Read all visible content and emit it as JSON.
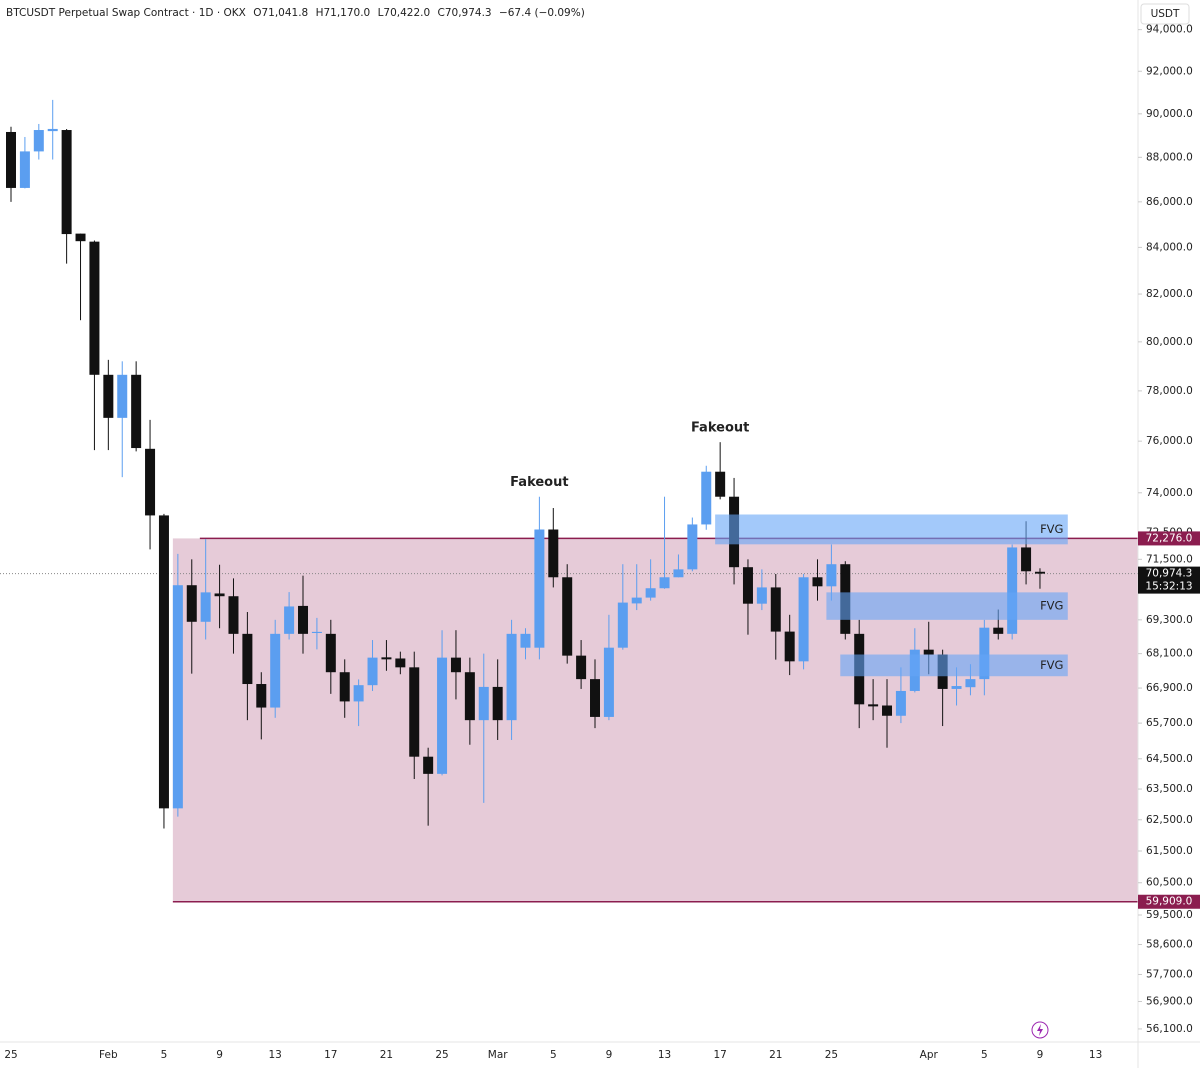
{
  "chart_data": {
    "type": "candlestick",
    "title": "BTCUSDT Perpetual Swap Contract · 1D · OKX",
    "ohlc_labels": [
      "O71,041.8",
      "H71,170.0",
      "L70,422.0",
      "C70,974.3",
      "−67.4 (−0.09%)"
    ],
    "currency": "USDT",
    "log_scale": true,
    "up_color": "#5b9ef0",
    "down_color": "#111111",
    "categories": [
      "25",
      null,
      null,
      null,
      null,
      null,
      null,
      "Feb",
      null,
      null,
      null,
      "5",
      null,
      null,
      null,
      "9",
      null,
      null,
      null,
      "13",
      null,
      null,
      null,
      "17",
      null,
      null,
      null,
      "21",
      null,
      null,
      null,
      "25",
      null,
      null,
      null,
      "Mar",
      null,
      null,
      null,
      "5",
      null,
      null,
      null,
      "9",
      null,
      null,
      null,
      "13",
      null,
      null,
      null,
      "17",
      null,
      null,
      null,
      "21",
      null,
      null,
      null,
      "25",
      null,
      null,
      null,
      null,
      null,
      null,
      "Apr",
      null,
      null,
      null,
      "5",
      null,
      null,
      null,
      "9",
      null,
      null,
      null,
      "13"
    ],
    "open": [
      89160,
      86620,
      88270,
      89200,
      89250,
      84600,
      84250,
      78650,
      76920,
      78650,
      75700,
      73140,
      62870,
      70550,
      69230,
      70250,
      70150,
      68800,
      67040,
      66230,
      68800,
      69800,
      68830,
      68800,
      67450,
      66440,
      67000,
      67970,
      67930,
      67620,
      64570,
      64000,
      67960,
      67450,
      65800,
      66940,
      65800,
      68310,
      68310,
      72610,
      70840,
      68030,
      67210,
      65910,
      68310,
      69890,
      70100,
      70440,
      70840,
      71130,
      72800,
      74810,
      73850,
      71210,
      69880,
      70470,
      68880,
      67830,
      70840,
      70510,
      71320,
      68800,
      66340,
      66300,
      65950,
      66800,
      68240,
      68070,
      66870,
      66930,
      67210,
      69020,
      68800,
      71940,
      71041.8,
      null,
      null,
      null,
      null
    ],
    "high": [
      89400,
      88930,
      89530,
      90650,
      89300,
      84600,
      84300,
      79260,
      79200,
      79200,
      76840,
      73200,
      71700,
      71500,
      72250,
      71300,
      70800,
      69580,
      67450,
      69300,
      70300,
      70900,
      69370,
      69300,
      67900,
      67200,
      68580,
      68580,
      68170,
      68170,
      64870,
      68930,
      68930,
      67960,
      68100,
      67900,
      69300,
      69000,
      73850,
      73420,
      71320,
      68580,
      67900,
      69480,
      71320,
      71320,
      71500,
      73850,
      71680,
      73060,
      75040,
      75960,
      74570,
      71500,
      71130,
      70960,
      69480,
      70960,
      71500,
      72050,
      71430,
      69300,
      67210,
      67210,
      67620,
      69000,
      69230,
      68240,
      67620,
      67730,
      69300,
      69670,
      72050,
      72920,
      71170,
      null,
      null,
      null,
      null
    ],
    "low": [
      86000,
      86600,
      87900,
      87900,
      83300,
      80900,
      75650,
      75650,
      74600,
      75600,
      71870,
      62220,
      62600,
      67400,
      68600,
      69000,
      68100,
      65800,
      65150,
      65880,
      68600,
      68100,
      68250,
      66700,
      65880,
      65600,
      66800,
      67500,
      67380,
      63830,
      62310,
      63950,
      66510,
      64970,
      63050,
      65130,
      65130,
      67900,
      67900,
      70470,
      67750,
      66870,
      65530,
      65800,
      68240,
      69650,
      69990,
      70420,
      70840,
      71060,
      72600,
      73750,
      70580,
      68770,
      69650,
      67890,
      67350,
      67550,
      69990,
      69990,
      68600,
      65530,
      65800,
      64870,
      65700,
      66750,
      67380,
      65600,
      66300,
      66650,
      66650,
      68600,
      68600,
      70580,
      70422,
      null,
      null,
      null,
      null
    ],
    "close": [
      86620,
      88270,
      89250,
      89300,
      84580,
      84270,
      78650,
      76920,
      78650,
      75730,
      73140,
      62870,
      70550,
      69230,
      70290,
      70150,
      68800,
      67040,
      66230,
      68800,
      69780,
      68800,
      68870,
      67450,
      66440,
      67000,
      67960,
      67900,
      67620,
      64570,
      64000,
      67960,
      67450,
      65800,
      66940,
      65800,
      68800,
      68800,
      72610,
      70840,
      68030,
      67210,
      65910,
      68310,
      69920,
      70100,
      70440,
      70840,
      71130,
      72800,
      74810,
      73850,
      71210,
      69880,
      70470,
      68880,
      67830,
      70840,
      70510,
      71320,
      68800,
      66340,
      66270,
      65950,
      66800,
      68240,
      68070,
      66870,
      66970,
      67210,
      69020,
      68800,
      71940,
      71060,
      70974.3,
      null,
      null,
      null,
      null
    ],
    "ylim": [
      55780,
      95450
    ],
    "yticks": [
      {
        "value": 94000,
        "label": "94,000.0"
      },
      {
        "value": 92000,
        "label": "92,000.0"
      },
      {
        "value": 90000,
        "label": "90,000.0"
      },
      {
        "value": 88000,
        "label": "88,000.0"
      },
      {
        "value": 86000,
        "label": "86,000.0"
      },
      {
        "value": 84000,
        "label": "84,000.0"
      },
      {
        "value": 82000,
        "label": "82,000.0"
      },
      {
        "value": 80000,
        "label": "80,000.0"
      },
      {
        "value": 78000,
        "label": "78,000.0"
      },
      {
        "value": 76000,
        "label": "76,000.0"
      },
      {
        "value": 74000,
        "label": "74,000.0"
      },
      {
        "value": 72500,
        "label": "72,500.0"
      },
      {
        "value": 71500,
        "label": "71,500.0"
      },
      {
        "value": 69300,
        "label": "69,300.0"
      },
      {
        "value": 68100,
        "label": "68,100.0"
      },
      {
        "value": 66900,
        "label": "66,900.0"
      },
      {
        "value": 65700,
        "label": "65,700.0"
      },
      {
        "value": 64500,
        "label": "64,500.0"
      },
      {
        "value": 63500,
        "label": "63,500.0"
      },
      {
        "value": 62500,
        "label": "62,500.0"
      },
      {
        "value": 61500,
        "label": "61,500.0"
      },
      {
        "value": 60500,
        "label": "60,500.0"
      },
      {
        "value": 59500,
        "label": "59,500.0"
      },
      {
        "value": 58600,
        "label": "58,600.0"
      },
      {
        "value": 57700,
        "label": "57,700.0"
      },
      {
        "value": 56900,
        "label": "56,900.0"
      },
      {
        "value": 56100,
        "label": "56,100.0"
      }
    ],
    "range_zone": {
      "from": 12,
      "top": {
        "value": 72276,
        "label": "72,276.0"
      },
      "bottom": {
        "value": 59909,
        "label": "59,909.0"
      },
      "color": "#8b1d4f",
      "fill": "rgba(196,130,162,0.42)"
    },
    "current_price": {
      "value": 70974.3,
      "label": "70,974.3",
      "countdown": "15:32:13"
    },
    "fvg": [
      {
        "label": "FVG",
        "from": 51,
        "to": 76,
        "top": 73175,
        "bottom": 72056
      },
      {
        "label": "FVG",
        "from": 59,
        "to": 76,
        "top": 70290,
        "bottom": 69300
      },
      {
        "label": "FVG",
        "from": 60,
        "to": 76,
        "top": 68070,
        "bottom": 67310
      }
    ],
    "fvg_color": "rgba(102,165,247,0.6)",
    "annotations": [
      {
        "text": "Fakeout",
        "index": 38
      },
      {
        "text": "Fakeout",
        "index": 51
      }
    ]
  }
}
